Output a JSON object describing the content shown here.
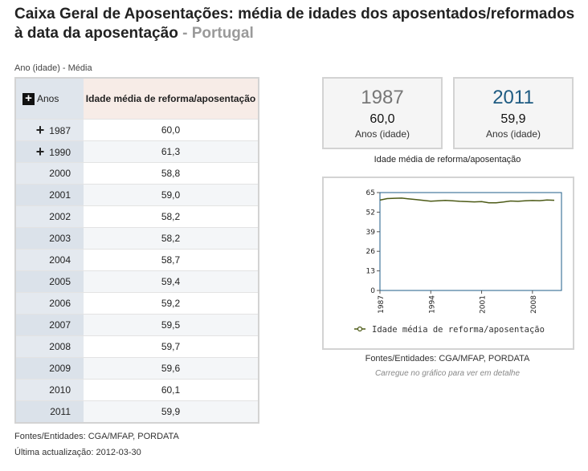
{
  "title": {
    "main": "Caixa Geral de Aposentações: média de idades dos aposentados/reformados à data da aposentação",
    "sep": " - ",
    "country": "Portugal"
  },
  "subhead": "Ano (idade) - Média",
  "table": {
    "col_year": "Anos",
    "col_value": "Idade média de reforma/aposentação",
    "rows": [
      {
        "year": "1987",
        "value": "60,0",
        "expandable": true
      },
      {
        "year": "1990",
        "value": "61,3",
        "expandable": true
      },
      {
        "year": "2000",
        "value": "58,8"
      },
      {
        "year": "2001",
        "value": "59,0"
      },
      {
        "year": "2002",
        "value": "58,2"
      },
      {
        "year": "2003",
        "value": "58,2"
      },
      {
        "year": "2004",
        "value": "58,7"
      },
      {
        "year": "2005",
        "value": "59,4"
      },
      {
        "year": "2006",
        "value": "59,2"
      },
      {
        "year": "2007",
        "value": "59,5"
      },
      {
        "year": "2008",
        "value": "59,7"
      },
      {
        "year": "2009",
        "value": "59,6"
      },
      {
        "year": "2010",
        "value": "60,1"
      },
      {
        "year": "2011",
        "value": "59,9"
      }
    ]
  },
  "footer": {
    "sources": "Fontes/Entidades: CGA/MFAP, PORDATA",
    "updated": "Última actualização: 2012-03-30"
  },
  "summary": {
    "first": {
      "year": "1987",
      "value": "60,0",
      "unit": "Anos (idade)"
    },
    "last": {
      "year": "2011",
      "value": "59,9",
      "unit": "Anos (idade)"
    },
    "measure": "Idade média de reforma/aposentação"
  },
  "chart_panel": {
    "sources": "Fontes/Entidades: CGA/MFAP, PORDATA",
    "hint": "Carregue no gráfico para ver em detalhe"
  },
  "chart_data": {
    "type": "line",
    "x": [
      1987,
      1988,
      1989,
      1990,
      1991,
      1992,
      1993,
      1994,
      1995,
      1996,
      1997,
      1998,
      1999,
      2000,
      2001,
      2002,
      2003,
      2004,
      2005,
      2006,
      2007,
      2008,
      2009,
      2010,
      2011
    ],
    "series": [
      {
        "name": "Idade média de reforma/aposentação",
        "values": [
          60.0,
          61.0,
          61.2,
          61.3,
          60.8,
          60.3,
          59.8,
          59.3,
          59.5,
          59.8,
          59.5,
          59.2,
          59.0,
          58.8,
          59.0,
          58.2,
          58.2,
          58.7,
          59.4,
          59.2,
          59.5,
          59.7,
          59.6,
          60.1,
          59.9
        ]
      }
    ],
    "xlim": [
      1987,
      2012
    ],
    "ylim": [
      0,
      65
    ],
    "yticks": [
      "0",
      "13",
      "26",
      "39",
      "52",
      "65"
    ],
    "xticks": [
      "1987",
      "1994",
      "2001",
      "2008"
    ],
    "xtick_values": [
      1987,
      1994,
      2001,
      2008
    ],
    "ytick_values": [
      0,
      13,
      26,
      39,
      52,
      65
    ],
    "legend_position": "bottom",
    "grid": false,
    "line_color": "#4c5a16",
    "frame_color": "#1f5e88"
  }
}
